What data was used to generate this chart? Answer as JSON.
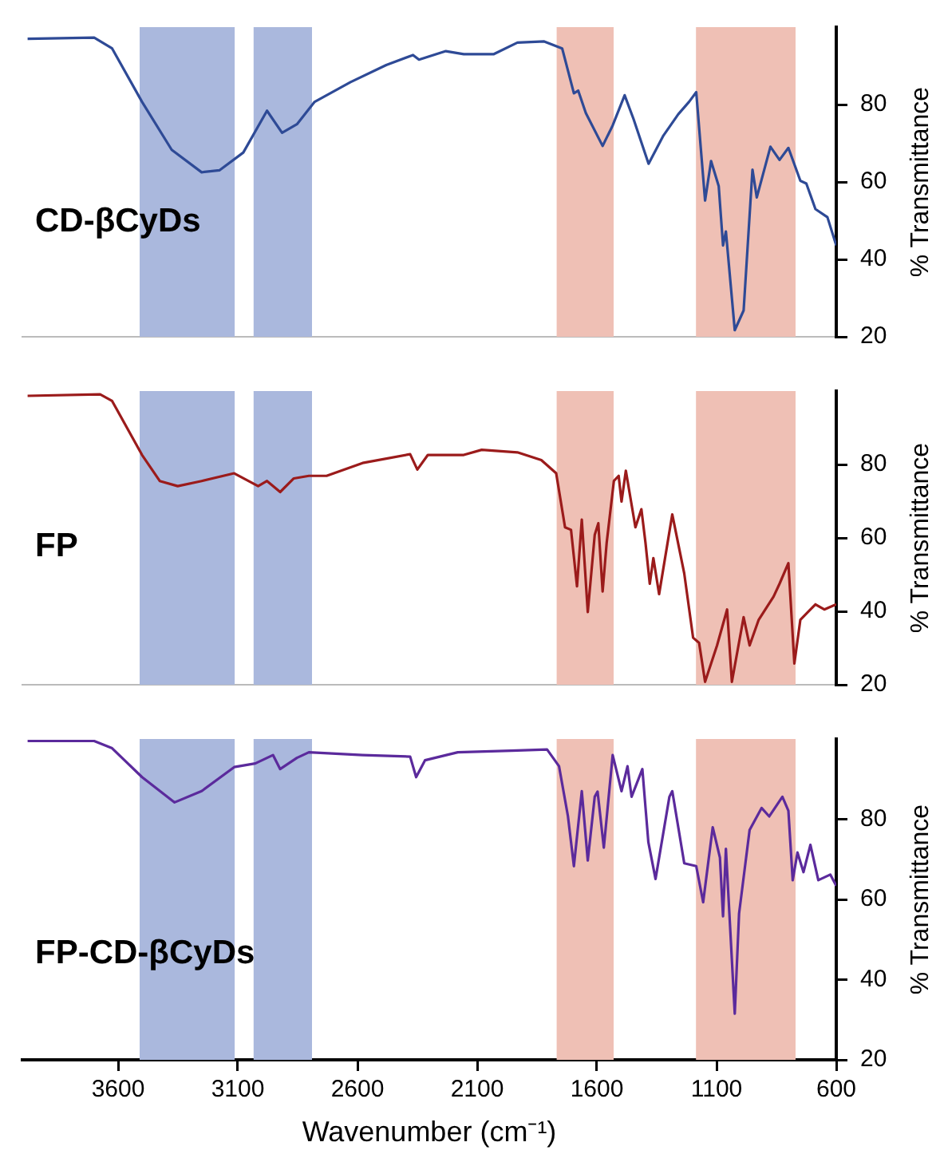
{
  "chart_data": [
    {
      "type": "line",
      "xlim": [
        4000,
        600
      ],
      "ylim": [
        20,
        100
      ],
      "yticks": [
        20,
        40,
        60,
        80
      ],
      "ylabel": "% Transmittance",
      "grid": false,
      "legend": false,
      "tick_labels": "y",
      "bands": [
        {
          "axis": "x",
          "from": 3510,
          "to": 3113,
          "color": "#aab8dd"
        },
        {
          "axis": "x",
          "from": 3034,
          "to": 2790,
          "color": "#aab8dd"
        },
        {
          "axis": "x",
          "from": 1768,
          "to": 1530,
          "color": "#efc0b5"
        },
        {
          "axis": "x",
          "from": 1186,
          "to": 770,
          "color": "#efc0b5"
        }
      ],
      "series": [
        {
          "name": "CD-βCyDs",
          "color": "#2e4a96",
          "x": [
            3978,
            3700,
            3625,
            3500,
            3376,
            3251,
            3177,
            3077,
            2978,
            2915,
            2853,
            2779,
            2629,
            2480,
            2368,
            2343,
            2231,
            2156,
            2032,
            1932,
            1820,
            1745,
            1696,
            1678,
            1646,
            1576,
            1534,
            1484,
            1447,
            1384,
            1322,
            1260,
            1215,
            1185,
            1148,
            1123,
            1091,
            1073,
            1061,
            1024,
            987,
            950,
            932,
            875,
            837,
            800,
            750,
            725,
            687,
            637,
            600
          ],
          "values": [
            97,
            97.3,
            94.5,
            80.7,
            68.3,
            62.5,
            63,
            67.6,
            78.4,
            72.7,
            74.9,
            80.7,
            85.8,
            90.2,
            92.8,
            91.6,
            93.8,
            93,
            93,
            96,
            96.3,
            94.5,
            82.9,
            83.6,
            77.8,
            69.3,
            74.6,
            82.4,
            76.3,
            64.7,
            72,
            77.5,
            80.7,
            83.2,
            55.2,
            65.4,
            58.9,
            43.6,
            47.2,
            21.7,
            26.8,
            63.2,
            56,
            69.1,
            65.7,
            68.8,
            60.3,
            59.6,
            53,
            50.9,
            43.6
          ]
        }
      ]
    },
    {
      "type": "line",
      "xlim": [
        4000,
        600
      ],
      "ylim": [
        20,
        100
      ],
      "yticks": [
        20,
        40,
        60,
        80
      ],
      "ylabel": "% Transmittance",
      "grid": false,
      "legend": false,
      "tick_labels": "y",
      "bands": [
        {
          "axis": "x",
          "from": 3510,
          "to": 3113,
          "color": "#aab8dd"
        },
        {
          "axis": "x",
          "from": 3034,
          "to": 2790,
          "color": "#aab8dd"
        },
        {
          "axis": "x",
          "from": 1768,
          "to": 1530,
          "color": "#efc0b5"
        },
        {
          "axis": "x",
          "from": 1186,
          "to": 770,
          "color": "#efc0b5"
        }
      ],
      "series": [
        {
          "name": "FP",
          "color": "#9b1b1b",
          "x": [
            3978,
            3675,
            3625,
            3500,
            3426,
            3351,
            3251,
            3115,
            3015,
            2978,
            2923,
            2866,
            2803,
            2729,
            2579,
            2380,
            2350,
            2306,
            2156,
            2081,
            1932,
            1832,
            1770,
            1733,
            1708,
            1683,
            1663,
            1638,
            1609,
            1594,
            1576,
            1559,
            1529,
            1509,
            1497,
            1479,
            1439,
            1414,
            1397,
            1379,
            1364,
            1340,
            1285,
            1235,
            1198,
            1173,
            1148,
            1098,
            1056,
            1036,
            987,
            962,
            924,
            862,
            837,
            800,
            775,
            750,
            687,
            650,
            600
          ],
          "values": [
            98.7,
            99.1,
            97.3,
            82.6,
            75.5,
            74.1,
            75.5,
            77.6,
            74.1,
            75.5,
            72.5,
            76.2,
            76.9,
            76.9,
            80.4,
            82.8,
            78.6,
            82.6,
            82.6,
            84,
            83.3,
            81.2,
            77.6,
            62.9,
            62.2,
            46.8,
            65,
            39.8,
            60.8,
            64,
            45.4,
            58.7,
            75.5,
            76.9,
            69.9,
            78.3,
            62.9,
            67.8,
            58.7,
            47.5,
            54.5,
            44.7,
            66.4,
            50.3,
            32.8,
            31.4,
            20.8,
            30.7,
            40.5,
            20.8,
            38.4,
            30.7,
            37.7,
            44,
            47.5,
            53.1,
            25.8,
            37.7,
            41.9,
            40.5,
            41.9
          ]
        }
      ]
    },
    {
      "type": "line",
      "xlim": [
        4000,
        600
      ],
      "xticks": [
        3600,
        3100,
        2600,
        2100,
        1600,
        1100,
        600
      ],
      "ylim": [
        20,
        100
      ],
      "yticks": [
        20,
        40,
        60,
        80
      ],
      "xlabel": "Wavenumber (cm⁻¹)",
      "ylabel": "% Transmittance",
      "grid": false,
      "legend": false,
      "bands": [
        {
          "axis": "x",
          "from": 3510,
          "to": 3113,
          "color": "#aab8dd"
        },
        {
          "axis": "x",
          "from": 3034,
          "to": 2790,
          "color": "#aab8dd"
        },
        {
          "axis": "x",
          "from": 1768,
          "to": 1530,
          "color": "#efc0b5"
        },
        {
          "axis": "x",
          "from": 1186,
          "to": 770,
          "color": "#efc0b5"
        }
      ],
      "series": [
        {
          "name": "FP-CD-βCyDs",
          "color": "#5b2a9c",
          "x": [
            3978,
            3700,
            3625,
            3500,
            3364,
            3251,
            3115,
            3027,
            2953,
            2923,
            2853,
            2803,
            2579,
            2380,
            2355,
            2318,
            2181,
            1957,
            1808,
            1758,
            1721,
            1696,
            1663,
            1638,
            1609,
            1597,
            1571,
            1534,
            1497,
            1472,
            1455,
            1410,
            1385,
            1355,
            1297,
            1285,
            1235,
            1185,
            1156,
            1116,
            1086,
            1073,
            1061,
            1024,
            1006,
            962,
            912,
            880,
            825,
            800,
            782,
            762,
            737,
            708,
            675,
            625,
            600
          ],
          "values": [
            99.5,
            99.5,
            97.7,
            90.5,
            84.2,
            87,
            93,
            93.9,
            96,
            92.5,
            95.3,
            96.7,
            96,
            95.6,
            90.5,
            94.7,
            96.7,
            97.1,
            97.4,
            93.2,
            80.8,
            68.3,
            87,
            69.7,
            85.6,
            86.9,
            72.9,
            96,
            87,
            93.2,
            85.6,
            92.5,
            74.3,
            65.1,
            85.6,
            87,
            69,
            68.3,
            59.3,
            78,
            70.4,
            55.8,
            72.6,
            31.5,
            56.5,
            77.3,
            82.8,
            80.7,
            85.6,
            82.1,
            64.8,
            71.7,
            66.8,
            73.6,
            64.8,
            66.2,
            63.4
          ]
        }
      ]
    }
  ]
}
